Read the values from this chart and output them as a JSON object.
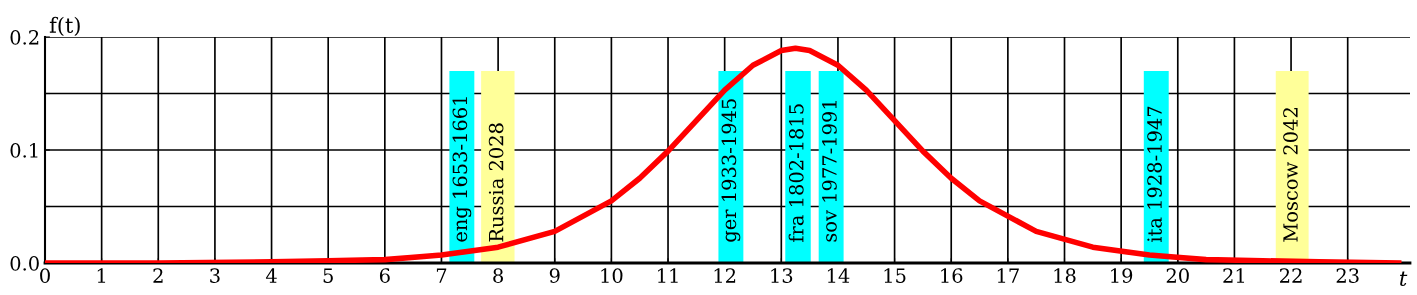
{
  "chart_data": {
    "type": "line",
    "xlabel": "t",
    "ylabel": "f(t)",
    "x": [
      0,
      2,
      4,
      5,
      6,
      7,
      8,
      9,
      10,
      10.5,
      11,
      11.5,
      12,
      12.5,
      13,
      13.25,
      13.5,
      14,
      14.5,
      15,
      15.5,
      16,
      16.5,
      17.5,
      18.5,
      19.5,
      20.5,
      21.5,
      22.5,
      23.9
    ],
    "series": [
      {
        "color": "#ff0000",
        "values": [
          0.0,
          0.0,
          0.001,
          0.002,
          0.003,
          0.007,
          0.014,
          0.028,
          0.055,
          0.075,
          0.099,
          0.126,
          0.153,
          0.175,
          0.188,
          0.19,
          0.188,
          0.175,
          0.153,
          0.126,
          0.099,
          0.075,
          0.055,
          0.028,
          0.014,
          0.007,
          0.003,
          0.002,
          0.001,
          0.0
        ]
      }
    ],
    "xlim": [
      0,
      24.1
    ],
    "ylim": [
      0,
      0.2
    ],
    "xticks": [
      0,
      1,
      2,
      3,
      4,
      5,
      6,
      7,
      8,
      9,
      10,
      11,
      12,
      13,
      14,
      15,
      16,
      17,
      18,
      19,
      20,
      21,
      22,
      23
    ],
    "yticks": [
      {
        "value": 0,
        "label": "0.0"
      },
      {
        "value": 0.05,
        "label": null
      },
      {
        "value": 0.1,
        "label": "0.1"
      },
      {
        "value": 0.15,
        "label": null
      },
      {
        "value": 0.2,
        "label": "0.2"
      }
    ],
    "grid": true,
    "bands": [
      {
        "axis": "x",
        "from": 7.14,
        "to": 7.58,
        "label": "eng 1653-1661",
        "color": "#00ffff"
      },
      {
        "axis": "x",
        "from": 7.7,
        "to": 8.29,
        "label": "Russia 2028",
        "color": "#ffff99"
      },
      {
        "axis": "x",
        "from": 11.89,
        "to": 12.33,
        "label": "ger 1933-1945",
        "color": "#00ffff"
      },
      {
        "axis": "x",
        "from": 13.07,
        "to": 13.52,
        "label": "fra 1802-1815",
        "color": "#00ffff"
      },
      {
        "axis": "x",
        "from": 13.66,
        "to": 14.1,
        "label": "sov 1977-1991",
        "color": "#00ffff"
      },
      {
        "axis": "x",
        "from": 19.4,
        "to": 19.84,
        "label": "ita 1928-1947",
        "color": "#00ffff"
      },
      {
        "axis": "x",
        "from": 21.73,
        "to": 22.31,
        "label": "Moscow 2042",
        "color": "#ffff99"
      }
    ]
  }
}
